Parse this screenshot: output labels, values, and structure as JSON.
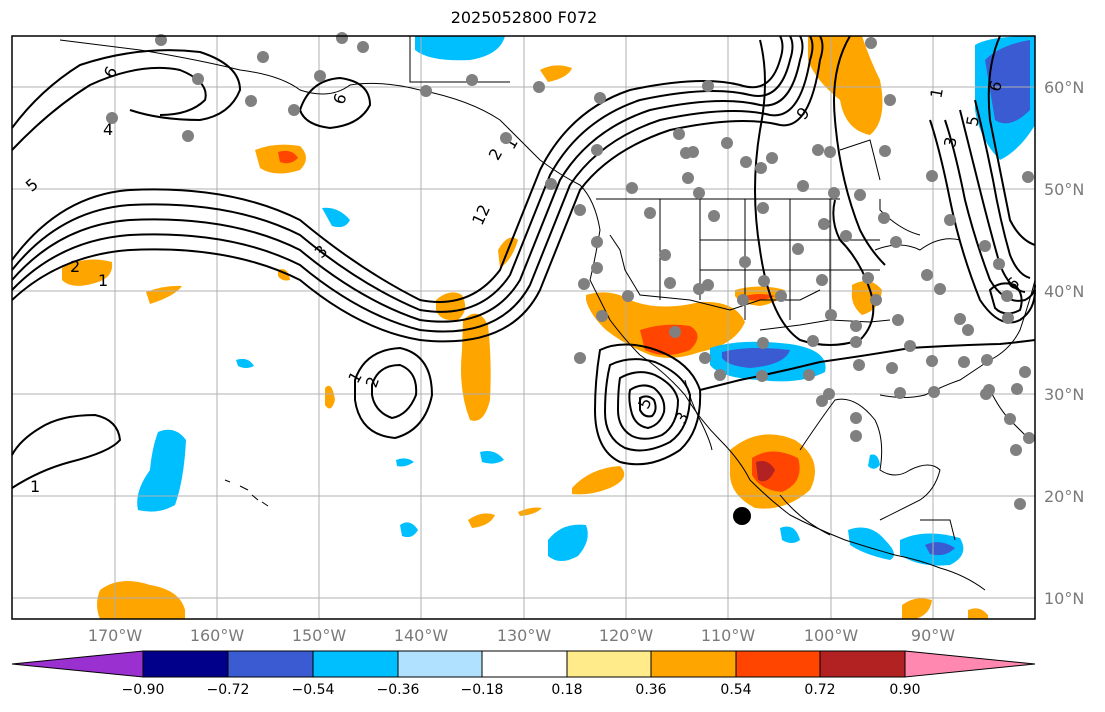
{
  "title": "2025052800 F072",
  "lat_labels": [
    "60°N",
    "50°N",
    "40°N",
    "30°N",
    "20°N",
    "10°N"
  ],
  "lon_labels": [
    "170°W",
    "160°W",
    "150°W",
    "140°W",
    "130°W",
    "120°W",
    "110°W",
    "100°W",
    "90°W"
  ],
  "colorbar": {
    "ticks": [
      "−0.90",
      "−0.72",
      "−0.54",
      "−0.36",
      "−0.18",
      "0.18",
      "0.36",
      "0.54",
      "0.72",
      "0.90"
    ],
    "colors": [
      "#9b30d0",
      "#00008b",
      "#3a5bd1",
      "#00bfff",
      "#b0e2ff",
      "#ffffff",
      "#ffeb8a",
      "#ffa500",
      "#ff4500",
      "#b22222",
      "#ff88b0"
    ]
  },
  "contour_labels": [
    "6",
    "6",
    "4",
    "5",
    "2",
    "1",
    "3",
    "2",
    "12",
    "1",
    "1",
    "2",
    "1",
    "5",
    "3",
    "3",
    "5",
    "6",
    "6",
    "1",
    "9"
  ],
  "colors": {
    "contour": "#000000",
    "station": "#808080",
    "coast": "#000000",
    "grid": "#b0b0b0"
  }
}
